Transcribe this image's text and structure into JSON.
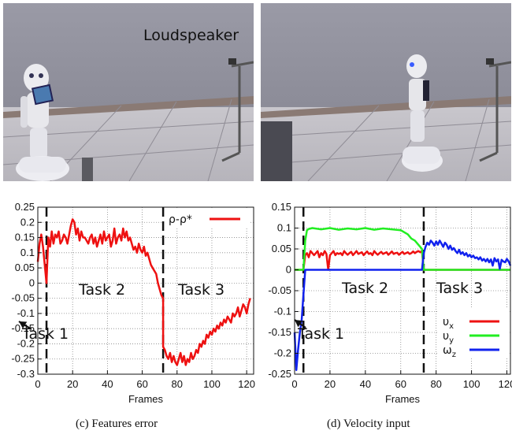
{
  "photos": {
    "left_label": "Loudspeaker"
  },
  "captions": {
    "left": "(c) Features error",
    "right": "(d) Velocity input"
  },
  "colors": {
    "red": "#ee1111",
    "green": "#22ee22",
    "blue": "#1122ee"
  },
  "chart_data": [
    {
      "type": "line",
      "title": "",
      "xlabel": "Frames",
      "ylabel": "",
      "xlim": [
        0,
        124
      ],
      "ylim": [
        -0.3,
        0.25
      ],
      "xticks": [
        0,
        20,
        40,
        60,
        80,
        100,
        120
      ],
      "yticks": [
        -0.3,
        -0.25,
        -0.2,
        -0.15,
        -0.1,
        -0.05,
        0,
        0.05,
        0.1,
        0.15,
        0.2,
        0.25
      ],
      "grid": true,
      "legend_position": "top-right",
      "annotations": [
        "Task 1",
        "Task 2",
        "Task 3"
      ],
      "task_boundaries": [
        5,
        72
      ],
      "series": [
        {
          "name": "ρ-ρ*",
          "color": "#ee1111",
          "x": [
            0,
            1,
            2,
            3,
            4,
            5,
            6,
            7,
            8,
            9,
            10,
            11,
            12,
            13,
            14,
            15,
            16,
            17,
            18,
            19,
            20,
            21,
            22,
            23,
            24,
            25,
            26,
            27,
            28,
            29,
            30,
            31,
            32,
            33,
            34,
            35,
            36,
            37,
            38,
            39,
            40,
            41,
            42,
            43,
            44,
            45,
            46,
            47,
            48,
            49,
            50,
            51,
            52,
            53,
            54,
            55,
            56,
            57,
            58,
            59,
            60,
            61,
            62,
            63,
            64,
            65,
            66,
            67,
            68,
            69,
            70,
            71,
            72,
            72,
            73,
            74,
            75,
            76,
            77,
            78,
            79,
            80,
            81,
            82,
            83,
            84,
            85,
            86,
            87,
            88,
            89,
            90,
            91,
            92,
            93,
            94,
            95,
            96,
            97,
            98,
            99,
            100,
            101,
            102,
            103,
            104,
            105,
            106,
            107,
            108,
            109,
            110,
            111,
            112,
            113,
            114,
            115,
            116,
            117,
            118,
            119,
            120,
            121,
            122
          ],
          "y": [
            0.07,
            0.13,
            0.16,
            0.12,
            0.06,
            0.0,
            0.15,
            0.12,
            0.17,
            0.13,
            0.16,
            0.15,
            0.17,
            0.13,
            0.14,
            0.16,
            0.15,
            0.13,
            0.16,
            0.19,
            0.21,
            0.2,
            0.16,
            0.18,
            0.14,
            0.17,
            0.15,
            0.15,
            0.14,
            0.13,
            0.15,
            0.16,
            0.13,
            0.15,
            0.12,
            0.14,
            0.16,
            0.13,
            0.17,
            0.14,
            0.15,
            0.16,
            0.12,
            0.14,
            0.18,
            0.13,
            0.15,
            0.16,
            0.14,
            0.18,
            0.15,
            0.17,
            0.14,
            0.15,
            0.13,
            0.11,
            0.12,
            0.1,
            0.13,
            0.11,
            0.1,
            0.12,
            0.09,
            0.1,
            0.08,
            0.06,
            0.05,
            0.04,
            0.03,
            0.0,
            -0.02,
            -0.04,
            -0.05,
            -0.21,
            -0.22,
            -0.24,
            -0.25,
            -0.23,
            -0.26,
            -0.24,
            -0.26,
            -0.27,
            -0.25,
            -0.23,
            -0.26,
            -0.24,
            -0.27,
            -0.25,
            -0.26,
            -0.23,
            -0.25,
            -0.24,
            -0.22,
            -0.23,
            -0.2,
            -0.21,
            -0.19,
            -0.2,
            -0.17,
            -0.18,
            -0.16,
            -0.17,
            -0.15,
            -0.16,
            -0.14,
            -0.15,
            -0.13,
            -0.14,
            -0.12,
            -0.13,
            -0.11,
            -0.12,
            -0.13,
            -0.1,
            -0.11,
            -0.1,
            -0.08,
            -0.11,
            -0.09,
            -0.07,
            -0.08,
            -0.1,
            -0.07,
            -0.05
          ]
        }
      ]
    },
    {
      "type": "line",
      "title": "",
      "xlabel": "Frames",
      "ylabel": "",
      "xlim": [
        0,
        122
      ],
      "ylim": [
        -0.25,
        0.15
      ],
      "xticks": [
        0,
        20,
        40,
        60,
        80,
        100,
        120
      ],
      "yticks": [
        -0.25,
        -0.2,
        -0.15,
        -0.1,
        -0.05,
        0,
        0.05,
        0.1,
        0.15
      ],
      "grid": true,
      "legend_position": "bottom-right",
      "annotations": [
        "Task 1",
        "Task 2",
        "Task 3"
      ],
      "task_boundaries": [
        5,
        73
      ],
      "series": [
        {
          "name": "υ_x",
          "color": "#ee1111",
          "x": [
            0,
            5,
            6,
            7,
            8,
            9,
            10,
            11,
            12,
            13,
            14,
            15,
            16,
            17,
            18,
            19,
            20,
            21,
            22,
            23,
            24,
            25,
            26,
            27,
            28,
            29,
            30,
            31,
            32,
            33,
            34,
            35,
            36,
            37,
            38,
            39,
            40,
            41,
            42,
            43,
            44,
            45,
            46,
            47,
            48,
            49,
            50,
            51,
            52,
            53,
            54,
            55,
            56,
            57,
            58,
            59,
            60,
            61,
            62,
            63,
            64,
            65,
            66,
            67,
            68,
            69,
            70,
            71,
            72,
            73,
            74,
            80,
            90,
            100,
            110,
            120,
            122
          ],
          "y": [
            0,
            0,
            0.035,
            0.04,
            0.03,
            0.045,
            0.04,
            0.035,
            0.04,
            0.045,
            0.03,
            0.04,
            0.035,
            0.045,
            0.038,
            0.0,
            0.035,
            0.04,
            0.045,
            0.035,
            0.04,
            0.038,
            0.04,
            0.035,
            0.045,
            0.04,
            0.036,
            0.04,
            0.043,
            0.035,
            0.04,
            0.045,
            0.038,
            0.04,
            0.042,
            0.035,
            0.04,
            0.044,
            0.038,
            0.04,
            0.035,
            0.045,
            0.04,
            0.036,
            0.04,
            0.043,
            0.038,
            0.04,
            0.042,
            0.036,
            0.04,
            0.044,
            0.038,
            0.04,
            0.041,
            0.036,
            0.04,
            0.043,
            0.038,
            0.04,
            0.042,
            0.038,
            0.04,
            0.044,
            0.04,
            0.043,
            0.045,
            0.042,
            0.045,
            0.0,
            0,
            0,
            0,
            0,
            0,
            0,
            0
          ]
        },
        {
          "name": "υ_y",
          "color": "#22ee22",
          "x": [
            0,
            5,
            6,
            7,
            8,
            10,
            15,
            20,
            25,
            30,
            35,
            40,
            45,
            50,
            55,
            60,
            62,
            64,
            66,
            68,
            70,
            71,
            72,
            73,
            74,
            80,
            90,
            100,
            110,
            120,
            122
          ],
          "y": [
            0,
            0,
            0.07,
            0.095,
            0.098,
            0.1,
            0.097,
            0.1,
            0.096,
            0.099,
            0.097,
            0.1,
            0.096,
            0.099,
            0.097,
            0.095,
            0.09,
            0.085,
            0.075,
            0.07,
            0.06,
            0.055,
            0.05,
            0.0,
            0,
            0,
            0,
            0,
            0,
            0,
            0
          ]
        },
        {
          "name": "ω_z",
          "color": "#1122ee",
          "x": [
            0,
            1,
            2,
            3,
            4,
            5,
            6,
            8,
            10,
            20,
            30,
            40,
            50,
            60,
            70,
            72,
            73,
            74,
            75,
            76,
            77,
            78,
            79,
            80,
            81,
            82,
            83,
            84,
            85,
            86,
            87,
            88,
            89,
            90,
            91,
            92,
            93,
            94,
            95,
            96,
            97,
            98,
            99,
            100,
            101,
            102,
            103,
            104,
            105,
            106,
            107,
            108,
            109,
            110,
            111,
            112,
            113,
            114,
            115,
            116,
            117,
            118,
            119,
            120,
            121,
            122
          ],
          "y": [
            -0.15,
            -0.24,
            -0.19,
            -0.15,
            -0.12,
            -0.06,
            0.0,
            0.0,
            0.0,
            0.0,
            0.0,
            0.0,
            0.0,
            0.0,
            0.0,
            0.0,
            0.04,
            0.055,
            0.065,
            0.06,
            0.07,
            0.065,
            0.058,
            0.068,
            0.06,
            0.07,
            0.063,
            0.055,
            0.065,
            0.06,
            0.05,
            0.058,
            0.048,
            0.052,
            0.045,
            0.04,
            0.048,
            0.038,
            0.042,
            0.035,
            0.04,
            0.032,
            0.036,
            0.03,
            0.034,
            0.028,
            0.03,
            0.025,
            0.03,
            0.022,
            0.026,
            0.02,
            0.026,
            0.018,
            0.025,
            0.01,
            0.028,
            0.02,
            0.025,
            0.002,
            0.024,
            0.02,
            0.018,
            0.026,
            0.02,
            0.01
          ]
        }
      ]
    }
  ]
}
